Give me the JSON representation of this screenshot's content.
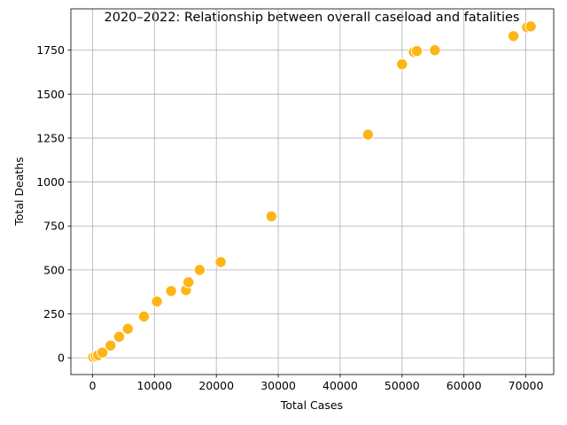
{
  "chart_data": {
    "type": "scatter",
    "title": "2020–2022: Relationship between overall caseload and fatalities",
    "xlabel": "Total Cases",
    "ylabel": "Total Deaths",
    "xlim": [
      -3500,
      74500
    ],
    "ylim": [
      -95,
      1985
    ],
    "xticks": [
      0,
      10000,
      20000,
      30000,
      40000,
      50000,
      60000,
      70000
    ],
    "xtick_labels": [
      "0",
      "10000",
      "20000",
      "30000",
      "40000",
      "50000",
      "60000",
      "70000"
    ],
    "yticks": [
      0,
      250,
      500,
      750,
      1000,
      1250,
      1500,
      1750
    ],
    "ytick_labels": [
      "0",
      "250",
      "500",
      "750",
      "1000",
      "1250",
      "1500",
      "1750"
    ],
    "grid": true,
    "marker_color": "#FDB515",
    "marker_edge_color": "#ffffff",
    "points": [
      {
        "x": 100,
        "y": 5
      },
      {
        "x": 500,
        "y": 10
      },
      {
        "x": 900,
        "y": 15
      },
      {
        "x": 1600,
        "y": 30
      },
      {
        "x": 2900,
        "y": 70
      },
      {
        "x": 4300,
        "y": 120
      },
      {
        "x": 5700,
        "y": 165
      },
      {
        "x": 8300,
        "y": 235
      },
      {
        "x": 10400,
        "y": 320
      },
      {
        "x": 12700,
        "y": 380
      },
      {
        "x": 15100,
        "y": 385
      },
      {
        "x": 15500,
        "y": 430
      },
      {
        "x": 17300,
        "y": 500
      },
      {
        "x": 20700,
        "y": 545
      },
      {
        "x": 28900,
        "y": 805
      },
      {
        "x": 44500,
        "y": 1270
      },
      {
        "x": 50000,
        "y": 1670
      },
      {
        "x": 51900,
        "y": 1740
      },
      {
        "x": 52400,
        "y": 1745
      },
      {
        "x": 55300,
        "y": 1750
      },
      {
        "x": 68000,
        "y": 1830
      },
      {
        "x": 70200,
        "y": 1880
      },
      {
        "x": 70800,
        "y": 1885
      }
    ]
  }
}
